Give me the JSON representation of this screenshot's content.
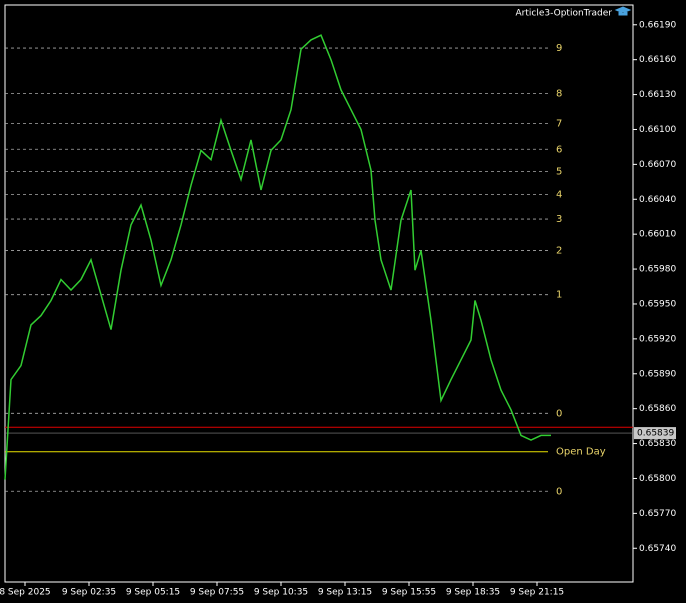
{
  "chart_data": {
    "type": "line",
    "title": "Article3-OptionTrader",
    "xlim": [
      0,
      314
    ],
    "ylim": [
      0.65711,
      0.66207
    ],
    "yticks": [
      {
        "value": 0.6619,
        "label": "0.66190"
      },
      {
        "value": 0.6616,
        "label": "0.66160"
      },
      {
        "value": 0.6613,
        "label": "0.66130"
      },
      {
        "value": 0.661,
        "label": "0.66100"
      },
      {
        "value": 0.6607,
        "label": "0.66070"
      },
      {
        "value": 0.6604,
        "label": "0.66040"
      },
      {
        "value": 0.6601,
        "label": "0.66010"
      },
      {
        "value": 0.6598,
        "label": "0.65980"
      },
      {
        "value": 0.6595,
        "label": "0.65950"
      },
      {
        "value": 0.6592,
        "label": "0.65920"
      },
      {
        "value": 0.6589,
        "label": "0.65890"
      },
      {
        "value": 0.6586,
        "label": "0.65860"
      },
      {
        "value": 0.6583,
        "label": "0.65830"
      },
      {
        "value": 0.658,
        "label": "0.65800"
      },
      {
        "value": 0.6577,
        "label": "0.65770"
      },
      {
        "value": 0.6574,
        "label": "0.65740"
      }
    ],
    "xticks": [
      {
        "value": 10,
        "label": "8 Sep 2025"
      },
      {
        "value": 42,
        "label": "9 Sep 02:35"
      },
      {
        "value": 74,
        "label": "9 Sep 05:15"
      },
      {
        "value": 106,
        "label": "9 Sep 07:55"
      },
      {
        "value": 138,
        "label": "9 Sep 10:35"
      },
      {
        "value": 170,
        "label": "9 Sep 13:15"
      },
      {
        "value": 202,
        "label": "9 Sep 15:55"
      },
      {
        "value": 234,
        "label": "9 Sep 18:35"
      },
      {
        "value": 266,
        "label": "9 Sep 21:15"
      }
    ],
    "series": [
      {
        "color": "#32cd32",
        "x": [
          0,
          3,
          8,
          13,
          18,
          23,
          28,
          33,
          38,
          43,
          48,
          53,
          58,
          63,
          68,
          73,
          78,
          83,
          88,
          93,
          98,
          103,
          108,
          113,
          118,
          123,
          128,
          133,
          138,
          143,
          148,
          153,
          158,
          163,
          168,
          173,
          178,
          183,
          185,
          188,
          193,
          198,
          203,
          205,
          208,
          213,
          218,
          223,
          228,
          233,
          235,
          238,
          243,
          248,
          253,
          258,
          263,
          268,
          273
        ],
        "values": [
          0.65799,
          0.65885,
          0.65897,
          0.65932,
          0.6594,
          0.65953,
          0.65971,
          0.65962,
          0.65971,
          0.65988,
          0.65958,
          0.65928,
          0.65979,
          0.66018,
          0.66035,
          0.66005,
          0.65966,
          0.65988,
          0.66018,
          0.66052,
          0.66082,
          0.66074,
          0.66108,
          0.66082,
          0.66057,
          0.66091,
          0.66048,
          0.66082,
          0.66091,
          0.66117,
          0.66169,
          0.66177,
          0.66181,
          0.6616,
          0.66134,
          0.66117,
          0.661,
          0.66065,
          0.66022,
          0.65988,
          0.65962,
          0.66022,
          0.66048,
          0.65979,
          0.65996,
          0.65936,
          0.65867,
          0.65885,
          0.65902,
          0.65919,
          0.65953,
          0.65936,
          0.65902,
          0.65876,
          0.65859,
          0.65837,
          0.65833,
          0.65837,
          0.65837
        ]
      }
    ],
    "levels": [
      {
        "label": "9",
        "value": 0.6617
      },
      {
        "label": "8",
        "value": 0.66131
      },
      {
        "label": "7",
        "value": 0.66105
      },
      {
        "label": "6",
        "value": 0.66083
      },
      {
        "label": "5",
        "value": 0.66064
      },
      {
        "label": "4",
        "value": 0.66044
      },
      {
        "label": "3",
        "value": 0.66023
      },
      {
        "label": "2",
        "value": 0.65996
      },
      {
        "label": "1",
        "value": 0.65958
      },
      {
        "label": "0",
        "value": 0.65856
      },
      {
        "label": "0",
        "value": 0.65789
      }
    ],
    "open_day": {
      "label": "Open Day",
      "value": 0.65823
    },
    "bid_line": 0.65844,
    "current_price": {
      "value": 0.65839,
      "label": "0.65839"
    }
  }
}
